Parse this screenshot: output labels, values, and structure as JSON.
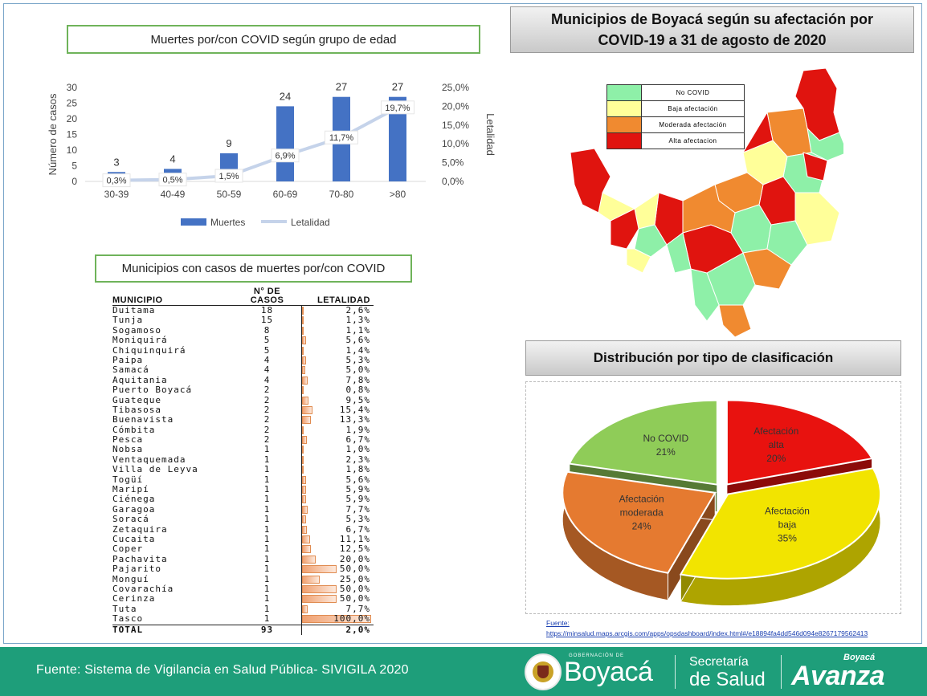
{
  "bar_chart_title": "Muertes por/con COVID según grupo de edad",
  "table_title": "Municipios con casos de muertes por/con COVID",
  "map_title": "Municipios de Boyacá según su afectación por COVID-19 a 31 de agosto de 2020",
  "pie_title": "Distribución por tipo de clasificación",
  "chart_data": [
    {
      "type": "bar",
      "title": "Muertes por/con COVID según grupo de edad",
      "categories": [
        "30-39",
        "40-49",
        "50-59",
        "60-69",
        "70-80",
        ">80"
      ],
      "series": [
        {
          "name": "Muertes",
          "type": "bar",
          "axis": "left",
          "values": [
            3,
            4,
            9,
            24,
            27,
            27
          ],
          "labels": [
            "3",
            "4",
            "9",
            "24",
            "27",
            "27"
          ],
          "color": "#4472c4"
        },
        {
          "name": "Letalidad",
          "type": "line",
          "axis": "right",
          "values": [
            0.3,
            0.5,
            1.5,
            6.9,
            11.7,
            19.7
          ],
          "labels": [
            "0,3%",
            "0,5%",
            "1,5%",
            "6,9%",
            "11,7%",
            "19,7%"
          ],
          "color": "#c5d3ea"
        }
      ],
      "ylabel": "Número de casos",
      "y2label": "Letalidad",
      "ylim": [
        0,
        30
      ],
      "y2lim": [
        0,
        25
      ],
      "yticks": [
        "0",
        "5",
        "10",
        "15",
        "20",
        "25",
        "30"
      ],
      "y2ticks": [
        "0,0%",
        "5,0%",
        "10,0%",
        "15,0%",
        "20,0%",
        "25,0%"
      ],
      "legend": "bottom",
      "grid": false
    },
    {
      "type": "pie",
      "title": "Distribución por tipo de clasificación",
      "slices": [
        {
          "label_lines": [
            "Afectación",
            "alta"
          ],
          "pct": "20%",
          "value": 20,
          "color": "#e8120f"
        },
        {
          "label_lines": [
            "Afectación",
            "baja"
          ],
          "pct": "35%",
          "value": 35,
          "color": "#f2e400"
        },
        {
          "label_lines": [
            "Afectación",
            "moderada"
          ],
          "pct": "24%",
          "value": 24,
          "color": "#e57a30"
        },
        {
          "label_lines": [
            "No COVID"
          ],
          "pct": "21%",
          "value": 21,
          "color": "#8fcc58"
        }
      ],
      "style": "3d-exploded"
    }
  ],
  "table": {
    "headers": {
      "municipio": "MUNICIPIO",
      "casos_1": "N° DE",
      "casos_2": "CASOS",
      "letalidad": "LETALIDAD"
    },
    "rows": [
      {
        "m": "Duitama",
        "c": "18",
        "l": "2,6%",
        "v": 2.6
      },
      {
        "m": "Tunja",
        "c": "15",
        "l": "1,3%",
        "v": 1.3
      },
      {
        "m": "Sogamoso",
        "c": "8",
        "l": "1,1%",
        "v": 1.1
      },
      {
        "m": "Moniquirá",
        "c": "5",
        "l": "5,6%",
        "v": 5.6
      },
      {
        "m": "Chiquinquirá",
        "c": "5",
        "l": "1,4%",
        "v": 1.4
      },
      {
        "m": "Paipa",
        "c": "4",
        "l": "5,3%",
        "v": 5.3
      },
      {
        "m": "Samacá",
        "c": "4",
        "l": "5,0%",
        "v": 5.0
      },
      {
        "m": "Aquitania",
        "c": "4",
        "l": "7,8%",
        "v": 7.8
      },
      {
        "m": "Puerto Boyacá",
        "c": "2",
        "l": "0,8%",
        "v": 0.8
      },
      {
        "m": "Guateque",
        "c": "2",
        "l": "9,5%",
        "v": 9.5
      },
      {
        "m": "Tibasosa",
        "c": "2",
        "l": "15,4%",
        "v": 15.4
      },
      {
        "m": "Buenavista",
        "c": "2",
        "l": "13,3%",
        "v": 13.3
      },
      {
        "m": "Cómbita",
        "c": "2",
        "l": "1,9%",
        "v": 1.9
      },
      {
        "m": "Pesca",
        "c": "2",
        "l": "6,7%",
        "v": 6.7
      },
      {
        "m": "Nobsa",
        "c": "1",
        "l": "1,0%",
        "v": 1.0
      },
      {
        "m": "Ventaquemada",
        "c": "1",
        "l": "2,3%",
        "v": 2.3
      },
      {
        "m": "Villa de Leyva",
        "c": "1",
        "l": "1,8%",
        "v": 1.8
      },
      {
        "m": "Togüí",
        "c": "1",
        "l": "5,6%",
        "v": 5.6
      },
      {
        "m": "Maripí",
        "c": "1",
        "l": "5,9%",
        "v": 5.9
      },
      {
        "m": "Ciénega",
        "c": "1",
        "l": "5,9%",
        "v": 5.9
      },
      {
        "m": "Garagoa",
        "c": "1",
        "l": "7,7%",
        "v": 7.7
      },
      {
        "m": "Soracá",
        "c": "1",
        "l": "5,3%",
        "v": 5.3
      },
      {
        "m": "Zetaquira",
        "c": "1",
        "l": "6,7%",
        "v": 6.7
      },
      {
        "m": "Cucaita",
        "c": "1",
        "l": "11,1%",
        "v": 11.1
      },
      {
        "m": "Coper",
        "c": "1",
        "l": "12,5%",
        "v": 12.5
      },
      {
        "m": "Pachavita",
        "c": "1",
        "l": "20,0%",
        "v": 20.0
      },
      {
        "m": "Pajarito",
        "c": "1",
        "l": "50,0%",
        "v": 50.0
      },
      {
        "m": "Monguí",
        "c": "1",
        "l": "25,0%",
        "v": 25.0
      },
      {
        "m": "Covarachía",
        "c": "1",
        "l": "50,0%",
        "v": 50.0
      },
      {
        "m": "Cerinza",
        "c": "1",
        "l": "50,0%",
        "v": 50.0
      },
      {
        "m": "Tuta",
        "c": "1",
        "l": "7,7%",
        "v": 7.7
      },
      {
        "m": "Tasco",
        "c": "1",
        "l": "100,0%",
        "v": 100.0
      }
    ],
    "total": {
      "m": "TOTAL",
      "c": "93",
      "l": "2,0%",
      "v": 2.0
    }
  },
  "map_legend": [
    {
      "label": "No COVID",
      "color": "#8ef0a8"
    },
    {
      "label": "Baja afectación",
      "color": "#ffff99"
    },
    {
      "label": "Moderada afectación",
      "color": "#f08a30"
    },
    {
      "label": "Alta afectacion",
      "color": "#e0140f"
    }
  ],
  "source_link": {
    "label": "Fuente:",
    "url": "https://minsalud.maps.arcgis.com/apps/opsdashboard/index.html#/e18894fa4dd546d094e8267179562413"
  },
  "footer": {
    "source_text": "Fuente: Sistema de Vigilancia en Salud Pública- SIVIGILA 2020",
    "gob_text": "GOBERNACIÓN DE",
    "boyaca_text": "Boyacá",
    "secretaria_1": "Secretaría",
    "secretaria_2": "de Salud",
    "avanza_1": "Boyacá",
    "avanza_2": "Avanza"
  }
}
